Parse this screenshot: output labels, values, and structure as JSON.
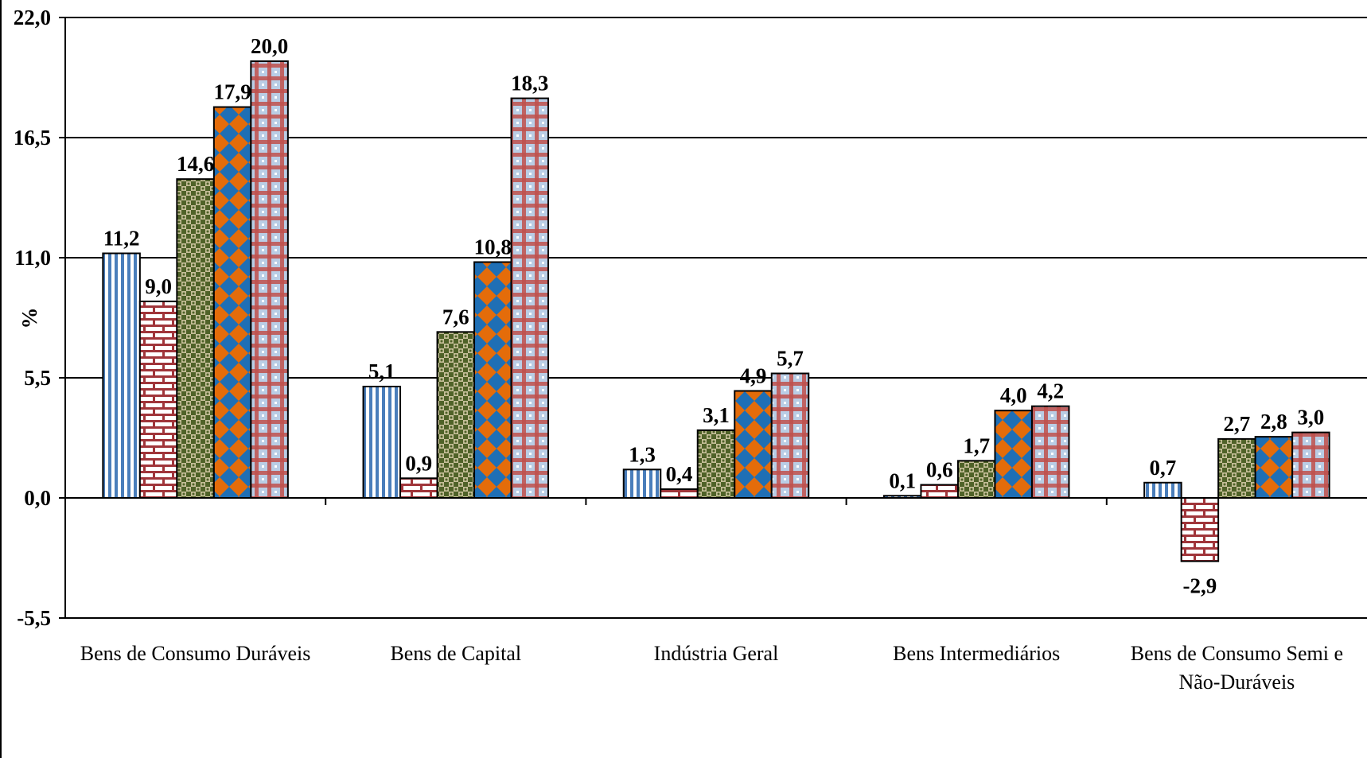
{
  "chart_data": {
    "type": "bar",
    "title": "",
    "xlabel": "",
    "ylabel": "%",
    "ylim": [
      -5.5,
      22.0
    ],
    "yticks": [
      "22,0",
      "16,5",
      "11,0",
      "5,5",
      "0,0",
      "-5,5"
    ],
    "ytick_values": [
      22.0,
      16.5,
      11.0,
      5.5,
      0.0,
      -5.5
    ],
    "grid": true,
    "legend": "none",
    "categories": [
      [
        "Bens de Consumo Duráveis"
      ],
      [
        "Bens de Capital"
      ],
      [
        "Indústria Geral"
      ],
      [
        "Bens Intermediários"
      ],
      [
        "Bens de Consumo Semi e",
        "Não-Duráveis"
      ]
    ],
    "series": [
      {
        "pattern": "vertical-stripes",
        "colors": [
          "#4a7ebb",
          "#ffffff"
        ],
        "values": [
          11.2,
          5.1,
          1.3,
          0.1,
          0.7
        ],
        "labels": [
          "11,2",
          "5,1",
          "1,3",
          "0,1",
          "0,7"
        ]
      },
      {
        "pattern": "brick",
        "colors": [
          "#a0353a",
          "#ffffff"
        ],
        "values": [
          9.0,
          0.9,
          0.4,
          0.6,
          -2.9
        ],
        "labels": [
          "9,0",
          "0,9",
          "0,4",
          "0,6",
          "-2,9"
        ]
      },
      {
        "pattern": "checker",
        "colors": [
          "#4f6228",
          "#c4bd97"
        ],
        "values": [
          14.6,
          7.6,
          3.1,
          1.7,
          2.7
        ],
        "labels": [
          "14,6",
          "7,6",
          "3,1",
          "1,7",
          "2,7"
        ]
      },
      {
        "pattern": "diamond",
        "colors": [
          "#1f6fb5",
          "#e46c0a"
        ],
        "values": [
          17.9,
          10.8,
          4.9,
          4.0,
          2.8
        ],
        "labels": [
          "17,9",
          "10,8",
          "4,9",
          "4,0",
          "2,8"
        ]
      },
      {
        "pattern": "plaid",
        "colors": [
          "#c0504d",
          "#b9cde5"
        ],
        "values": [
          20.0,
          18.3,
          5.7,
          4.2,
          3.0
        ],
        "labels": [
          "20,0",
          "18,3",
          "5,7",
          "4,2",
          "3,0"
        ]
      }
    ]
  }
}
